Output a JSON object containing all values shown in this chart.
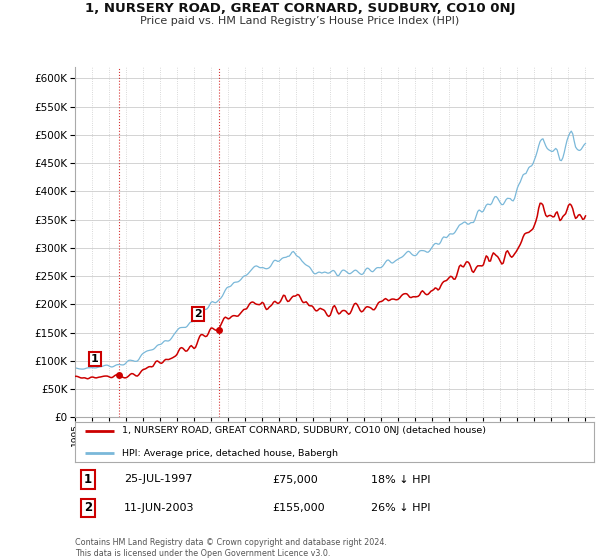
{
  "title": "1, NURSERY ROAD, GREAT CORNARD, SUDBURY, CO10 0NJ",
  "subtitle": "Price paid vs. HM Land Registry’s House Price Index (HPI)",
  "hpi_label": "HPI: Average price, detached house, Babergh",
  "property_label": "1, NURSERY ROAD, GREAT CORNARD, SUDBURY, CO10 0NJ (detached house)",
  "sale1_date": "25-JUL-1997",
  "sale1_price": 75000,
  "sale1_hpi": "18% ↓ HPI",
  "sale2_date": "11-JUN-2003",
  "sale2_price": 155000,
  "sale2_hpi": "26% ↓ HPI",
  "footer": "Contains HM Land Registry data © Crown copyright and database right 2024.\nThis data is licensed under the Open Government Licence v3.0.",
  "ylim": [
    0,
    620000
  ],
  "yticks": [
    0,
    50000,
    100000,
    150000,
    200000,
    250000,
    300000,
    350000,
    400000,
    450000,
    500000,
    550000,
    600000
  ],
  "background_color": "#ffffff",
  "grid_color": "#cccccc",
  "hpi_color": "#7ab8d9",
  "property_color": "#cc0000",
  "sale1_year": 1997.57,
  "sale2_year": 2003.44,
  "xmin": 1995.0,
  "xmax": 2025.5
}
